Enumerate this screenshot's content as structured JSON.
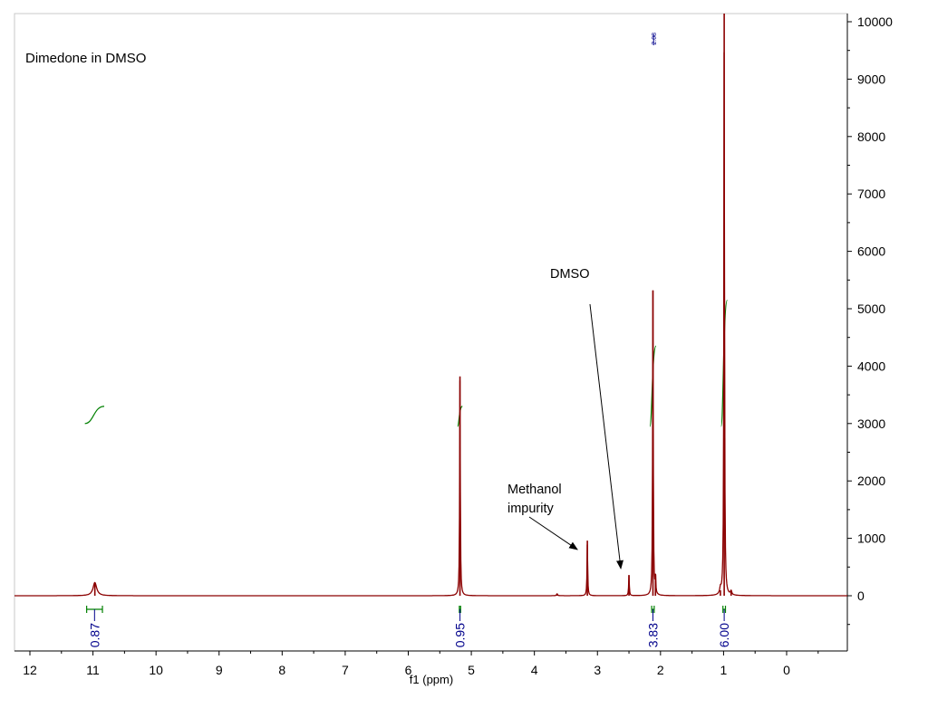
{
  "chart_data": {
    "type": "line",
    "title": "Dimedone in DMSO",
    "xlabel": "f1 (ppm)",
    "ylabel": "",
    "xlim": [
      12.2,
      -0.95
    ],
    "ylim": [
      -950,
      10150
    ],
    "x_reversed": true,
    "x_ticks": [
      12,
      11,
      10,
      9,
      8,
      7,
      6,
      5,
      4,
      3,
      2,
      1,
      0
    ],
    "y_ticks": [
      0,
      1000,
      2000,
      3000,
      4000,
      5000,
      6000,
      7000,
      8000,
      9000,
      10000
    ],
    "y_axis_side": "right",
    "grid": false,
    "series": [
      {
        "color": "#8b0000",
        "peaks": [
          {
            "ppm": 10.97,
            "height": 230,
            "width": 0.035
          },
          {
            "ppm": 5.18,
            "height": 3820,
            "width": 0.006
          },
          {
            "ppm": 3.16,
            "height": 960,
            "width": 0.006
          },
          {
            "ppm": 2.5,
            "height": 360,
            "width": 0.006
          },
          {
            "ppm": 2.12,
            "height": 5320,
            "width": 0.006
          },
          {
            "ppm": 2.08,
            "height": 380,
            "width": 0.005
          },
          {
            "ppm": 1.05,
            "height": 95,
            "width": 0.012
          },
          {
            "ppm": 0.99,
            "height": 10150,
            "width": 0.006
          },
          {
            "ppm": 0.88,
            "height": 70,
            "width": 0.012
          },
          {
            "ppm": 3.64,
            "height": 35,
            "width": 0.01
          }
        ]
      }
    ],
    "peak_labels": [
      {
        "ppm": 2.08,
        "text": "2.08"
      }
    ],
    "integrals": [
      {
        "ppm": 10.97,
        "value": "0.87",
        "from": 11.1,
        "to": 10.85,
        "curve_low": 3000,
        "curve_high": 3300
      },
      {
        "ppm": 5.18,
        "value": "0.95",
        "from": 5.19,
        "to": 5.17,
        "curve_low": 2950,
        "curve_high": 3300
      },
      {
        "ppm": 2.12,
        "value": "3.83",
        "from": 2.14,
        "to": 2.1,
        "curve_low": 2950,
        "curve_high": 4350
      },
      {
        "ppm": 0.99,
        "value": "6.00",
        "from": 1.01,
        "to": 0.97,
        "curve_low": 2950,
        "curve_high": 5150
      }
    ],
    "annotations": [
      {
        "text_lines": [
          "DMSO"
        ],
        "ppm": 2.5
      },
      {
        "text_lines": [
          "Methanol",
          "impurity"
        ],
        "ppm": 3.16
      }
    ],
    "colors": {
      "spectrum": "#8b0000",
      "integral": "#008000",
      "integral_label": "#00008b",
      "axis": "#000000"
    }
  }
}
